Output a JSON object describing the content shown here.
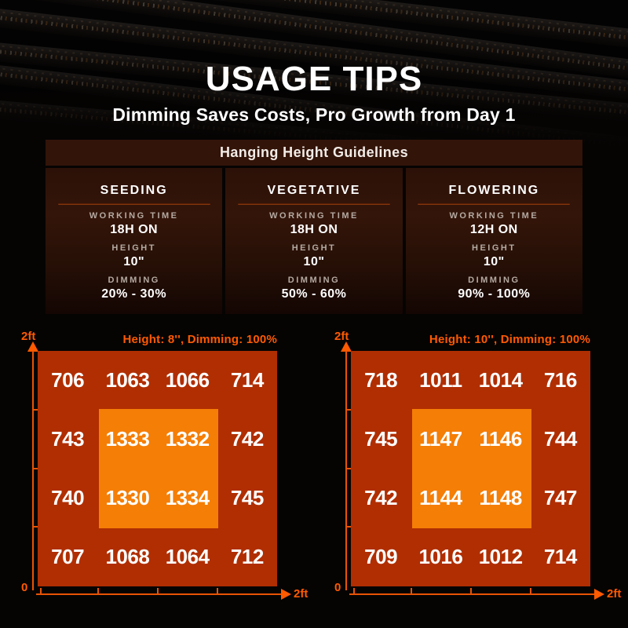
{
  "header": {
    "title": "USAGE TIPS",
    "subtitle": "Dimming Saves Costs, Pro Growth from Day 1"
  },
  "guidelines": {
    "title": "Hanging Height Guidelines",
    "stages": [
      {
        "name": "SEEDING",
        "working_time_label": "WORKING TIME",
        "working_time": "18H ON",
        "height_label": "HEIGHT",
        "height": "10\"",
        "dimming_label": "DIMMING",
        "dimming": "20% - 30%"
      },
      {
        "name": "VEGETATIVE",
        "working_time_label": "WORKING TIME",
        "working_time": "18H ON",
        "height_label": "HEIGHT",
        "height": "10\"",
        "dimming_label": "DIMMING",
        "dimming": "50% - 60%"
      },
      {
        "name": "FLOWERING",
        "working_time_label": "WORKING TIME",
        "working_time": "12H ON",
        "height_label": "HEIGHT",
        "height": "10\"",
        "dimming_label": "DIMMING",
        "dimming": "90% - 100%"
      }
    ]
  },
  "chart_data": [
    {
      "type": "heatmap",
      "title": "Height: 8'', Dimming: 100%",
      "y_axis_label": "2ft",
      "x_axis_label": "2ft",
      "origin_label": "0",
      "axis_range_ft": [
        0,
        2
      ],
      "grid": false,
      "values": [
        [
          706,
          1063,
          1066,
          714
        ],
        [
          743,
          1333,
          1332,
          742
        ],
        [
          740,
          1330,
          1334,
          745
        ],
        [
          707,
          1068,
          1064,
          712
        ]
      ]
    },
    {
      "type": "heatmap",
      "title": "Height: 10'', Dimming: 100%",
      "y_axis_label": "2ft",
      "x_axis_label": "2ft",
      "origin_label": "0",
      "axis_range_ft": [
        0,
        2
      ],
      "grid": false,
      "values": [
        [
          718,
          1011,
          1014,
          716
        ],
        [
          745,
          1147,
          1146,
          744
        ],
        [
          742,
          1144,
          1148,
          747
        ],
        [
          709,
          1016,
          1012,
          714
        ]
      ]
    }
  ],
  "colors": {
    "accent_orange": "#ff5a00",
    "map_outer": "#b02e02",
    "map_hotzone": "#f57e06",
    "panel_brown": "#331409",
    "label_gray": "#b4aaa2"
  }
}
